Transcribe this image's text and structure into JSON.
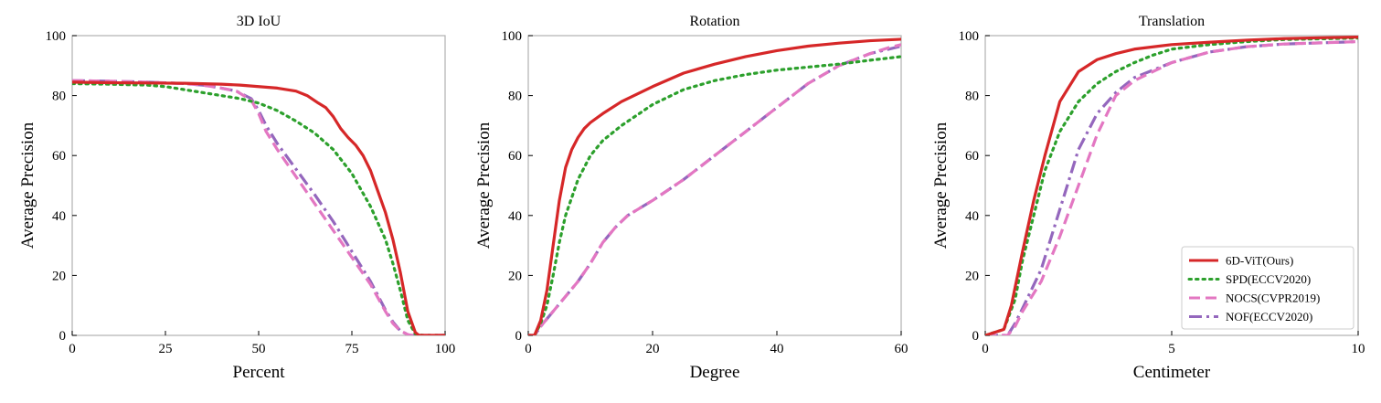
{
  "legend": {
    "entries": [
      {
        "label": "6D-ViT(Ours)",
        "color": "#d62728",
        "style": "solid"
      },
      {
        "label": "SPD(ECCV2020)",
        "color": "#2ca02c",
        "style": "dotted"
      },
      {
        "label": "NOCS(CVPR2019)",
        "color": "#e377c2",
        "style": "dashed"
      },
      {
        "label": "NOF(ECCV2020)",
        "color": "#9467bd",
        "style": "dashdot"
      }
    ],
    "placement": "lower-right"
  },
  "chart_data": [
    {
      "type": "line",
      "title": "3D IoU",
      "xlabel": "Percent",
      "ylabel": "Average Precision",
      "xlim": [
        0,
        100
      ],
      "ylim": [
        0,
        100
      ],
      "xticks": [
        "0",
        "25",
        "50",
        "75",
        "100"
      ],
      "yticks": [
        "0",
        "20",
        "40",
        "60",
        "80",
        "100"
      ],
      "grid": false,
      "series": [
        {
          "name": "6D-ViT(Ours)",
          "color": "#d62728",
          "style": "solid",
          "x": [
            0,
            10,
            20,
            30,
            40,
            45,
            50,
            55,
            60,
            63,
            66,
            68,
            70,
            72,
            74,
            76,
            78,
            80,
            82,
            84,
            86,
            88,
            90,
            92,
            93,
            95,
            100
          ],
          "y": [
            84.5,
            84.3,
            84.2,
            84.1,
            83.8,
            83.5,
            83.0,
            82.5,
            81.5,
            80.0,
            77.5,
            76.0,
            73.0,
            69.0,
            66.0,
            63.5,
            60.0,
            55.0,
            48.0,
            41.0,
            32.0,
            21.0,
            8.0,
            1.0,
            0,
            0,
            0
          ]
        },
        {
          "name": "SPD(ECCV2020)",
          "color": "#2ca02c",
          "style": "dotted",
          "x": [
            0,
            10,
            20,
            25,
            30,
            35,
            40,
            45,
            50,
            55,
            60,
            65,
            70,
            75,
            80,
            84,
            86,
            88,
            90,
            92,
            94,
            100
          ],
          "y": [
            84.0,
            83.8,
            83.5,
            83.0,
            82.0,
            81.0,
            80.0,
            79.0,
            77.5,
            75.0,
            71.5,
            67.5,
            62.0,
            54.0,
            43.0,
            32.0,
            24.0,
            15.0,
            5.0,
            0.5,
            0,
            0
          ]
        },
        {
          "name": "NOCS(CVPR2019)",
          "color": "#e377c2",
          "style": "dashed",
          "x": [
            0,
            10,
            20,
            30,
            35,
            40,
            44,
            48,
            50,
            52,
            55,
            60,
            65,
            70,
            75,
            80,
            84,
            86,
            88,
            90,
            91,
            100
          ],
          "y": [
            85.0,
            84.8,
            84.5,
            84.0,
            83.5,
            82.5,
            81.5,
            78.5,
            74.0,
            68.0,
            62.0,
            53.0,
            44.0,
            35.0,
            26.0,
            17.0,
            8.0,
            4.0,
            1.5,
            0.3,
            0,
            0
          ]
        },
        {
          "name": "NOF(ECCV2020)",
          "color": "#9467bd",
          "style": "dashdot",
          "x": [
            0,
            10,
            20,
            30,
            35,
            40,
            44,
            48,
            50,
            52,
            55,
            60,
            65,
            70,
            75,
            80,
            84,
            86,
            88,
            90,
            91,
            100
          ],
          "y": [
            85.0,
            84.8,
            84.5,
            84.0,
            83.5,
            82.5,
            81.5,
            79.0,
            75.0,
            70.0,
            64.0,
            55.5,
            47.0,
            38.0,
            28.0,
            18.0,
            8.5,
            4.5,
            1.5,
            0.3,
            0,
            0
          ]
        }
      ]
    },
    {
      "type": "line",
      "title": "Rotation",
      "xlabel": "Degree",
      "ylabel": "Average Precision",
      "xlim": [
        0,
        60
      ],
      "ylim": [
        0,
        100
      ],
      "xticks": [
        "0",
        "20",
        "40",
        "60"
      ],
      "yticks": [
        "0",
        "20",
        "40",
        "60",
        "80",
        "100"
      ],
      "grid": false,
      "series": [
        {
          "name": "6D-ViT(Ours)",
          "color": "#d62728",
          "style": "solid",
          "x": [
            0,
            1,
            2,
            3,
            4,
            5,
            6,
            7,
            8,
            9,
            10,
            12,
            15,
            20,
            25,
            30,
            35,
            40,
            45,
            50,
            55,
            60
          ],
          "y": [
            0,
            0,
            5,
            15,
            30,
            45,
            56,
            62,
            66,
            69,
            71,
            74,
            78,
            83,
            87.5,
            90.5,
            93,
            95,
            96.5,
            97.5,
            98.3,
            98.8
          ]
        },
        {
          "name": "SPD(ECCV2020)",
          "color": "#2ca02c",
          "style": "dotted",
          "x": [
            0,
            1,
            2,
            3,
            4,
            5,
            6,
            8,
            10,
            12,
            15,
            20,
            25,
            30,
            35,
            40,
            45,
            50,
            55,
            60
          ],
          "y": [
            0,
            0,
            4,
            10,
            20,
            31,
            40,
            52,
            60,
            65,
            70,
            77,
            82,
            85,
            87,
            88.5,
            89.5,
            90.5,
            91.8,
            93
          ]
        },
        {
          "name": "NOCS(CVPR2019)",
          "color": "#e377c2",
          "style": "dashed",
          "x": [
            0,
            1,
            2,
            4,
            6,
            8,
            10,
            12,
            14,
            16,
            20,
            25,
            30,
            35,
            40,
            45,
            50,
            55,
            58,
            60
          ],
          "y": [
            0,
            0,
            3,
            8,
            13,
            18,
            24,
            31,
            36,
            40,
            45,
            52,
            60,
            68,
            76,
            84,
            90,
            94,
            96,
            97
          ]
        },
        {
          "name": "NOF(ECCV2020)",
          "color": "#9467bd",
          "style": "dashdot",
          "x": [
            0,
            1,
            2,
            4,
            6,
            8,
            10,
            12,
            14,
            16,
            20,
            25,
            30,
            35,
            40,
            45,
            50,
            55,
            58,
            60
          ],
          "y": [
            0,
            0,
            3,
            8,
            13,
            18,
            24,
            31,
            36,
            40,
            45,
            52,
            60,
            68,
            76,
            84,
            90,
            94,
            95.5,
            96.5
          ]
        }
      ]
    },
    {
      "type": "line",
      "title": "Translation",
      "xlabel": "Centimeter",
      "ylabel": "Average Precision",
      "xlim": [
        0,
        10
      ],
      "ylim": [
        0,
        100
      ],
      "xticks": [
        "0",
        "5",
        "10"
      ],
      "yticks": [
        "0",
        "20",
        "40",
        "60",
        "80",
        "100"
      ],
      "grid": false,
      "series": [
        {
          "name": "6D-ViT(Ours)",
          "color": "#d62728",
          "style": "solid",
          "x": [
            0,
            0.5,
            0.7,
            1.0,
            1.3,
            1.6,
            2.0,
            2.5,
            3.0,
            3.5,
            4.0,
            5.0,
            6.0,
            7.0,
            8.0,
            9.0,
            10.0
          ],
          "y": [
            0,
            2,
            10,
            28,
            45,
            60,
            78,
            88,
            92,
            94,
            95.5,
            97,
            97.8,
            98.5,
            99,
            99.3,
            99.5
          ]
        },
        {
          "name": "SPD(ECCV2020)",
          "color": "#2ca02c",
          "style": "dotted",
          "x": [
            0,
            0.5,
            0.8,
            1.0,
            1.3,
            1.6,
            2.0,
            2.5,
            3.0,
            3.5,
            4.0,
            4.5,
            5.0,
            6.0,
            7.0,
            8.0,
            10.0
          ],
          "y": [
            0,
            2,
            12,
            25,
            40,
            55,
            68,
            78,
            84,
            88,
            91,
            93.5,
            95.5,
            97,
            98,
            98.7,
            99.2
          ]
        },
        {
          "name": "NOCS(CVPR2019)",
          "color": "#e377c2",
          "style": "dashed",
          "x": [
            0,
            0.6,
            0.8,
            1.0,
            1.5,
            2.0,
            2.5,
            3.0,
            3.5,
            4.0,
            4.5,
            5.0,
            6.0,
            7.0,
            8.0,
            10.0
          ],
          "y": [
            0,
            0,
            3,
            8,
            18,
            33,
            50,
            67,
            80,
            85,
            88,
            91,
            94.5,
            96.3,
            97.2,
            98
          ]
        },
        {
          "name": "NOF(ECCV2020)",
          "color": "#9467bd",
          "style": "dashdot",
          "x": [
            0,
            0.6,
            0.8,
            1.0,
            1.5,
            2.0,
            2.5,
            3.0,
            3.5,
            4.0,
            4.5,
            5.0,
            6.0,
            7.0,
            8.0,
            10.0
          ],
          "y": [
            0,
            0,
            4,
            9,
            22,
            42,
            62,
            74,
            81,
            86,
            88.5,
            91,
            94.5,
            96.3,
            97.2,
            98
          ]
        }
      ]
    }
  ]
}
